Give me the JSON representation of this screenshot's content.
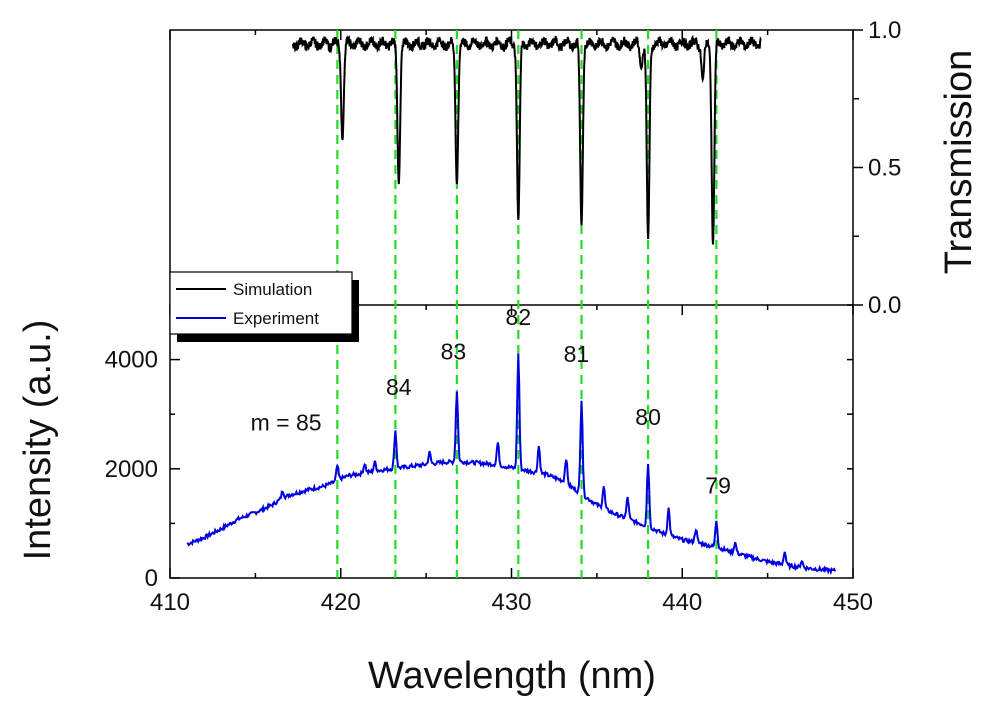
{
  "chart_data": {
    "type": "line",
    "xlabel": "Wavelength (nm)",
    "xlim": [
      410,
      450
    ],
    "x_ticks": [
      "410",
      "420",
      "430",
      "440",
      "450"
    ],
    "bottom_panel": {
      "ylabel": "Intensity (a.u.)",
      "ylim": [
        0,
        5000
      ],
      "y_ticks": [
        "0",
        "2000",
        "4000"
      ]
    },
    "top_panel": {
      "ylabel": "Transmission",
      "ylim": [
        0,
        1.0
      ],
      "y_ticks": [
        "0.0",
        "0.5",
        "1.0"
      ]
    },
    "legend": {
      "position": "center-left",
      "entries": [
        {
          "name": "Simulation",
          "color": "#000000"
        },
        {
          "name": "Experiment",
          "color": "#0000e0"
        }
      ]
    },
    "guide_lines": {
      "color": "#22dd22",
      "x": [
        419.8,
        423.2,
        426.8,
        430.4,
        434.1,
        438.0,
        442.0
      ]
    },
    "annotations": [
      {
        "text": "m = 85",
        "x": 416.8,
        "y": 2700
      },
      {
        "text": "84",
        "x": 423.4,
        "y": 3350
      },
      {
        "text": "83",
        "x": 426.6,
        "y": 4000
      },
      {
        "text": "82",
        "x": 430.4,
        "y": 4630
      },
      {
        "text": "81",
        "x": 433.8,
        "y": 3960
      },
      {
        "text": "80",
        "x": 438.0,
        "y": 2800
      },
      {
        "text": "79",
        "x": 442.1,
        "y": 1550
      }
    ],
    "series": [
      {
        "name": "Simulation",
        "panel": "top",
        "color": "#000000",
        "baseline": 0.95,
        "x_range": [
          417.2,
          444.6
        ],
        "dips": [
          {
            "x": 420.1,
            "min": 0.6
          },
          {
            "x": 423.4,
            "min": 0.44
          },
          {
            "x": 426.8,
            "min": 0.44
          },
          {
            "x": 430.4,
            "min": 0.31
          },
          {
            "x": 434.1,
            "min": 0.29
          },
          {
            "x": 437.6,
            "min": 0.86
          },
          {
            "x": 438.0,
            "min": 0.24
          },
          {
            "x": 441.2,
            "min": 0.82
          },
          {
            "x": 441.8,
            "min": 0.22
          }
        ]
      },
      {
        "name": "Experiment",
        "panel": "bottom",
        "color": "#0000e0",
        "x": [
          411.0,
          412.0,
          413.0,
          414.0,
          415.0,
          416.0,
          416.5,
          417.0,
          418.0,
          419.0,
          419.5,
          420.0,
          420.5,
          421.0,
          422.0,
          423.0,
          424.0,
          425.0,
          426.0,
          427.0,
          428.0,
          429.0,
          430.0,
          431.0,
          432.0,
          433.0,
          434.0,
          435.0,
          436.0,
          437.0,
          438.0,
          439.0,
          440.0,
          441.0,
          442.0,
          443.0,
          444.0,
          445.0,
          446.0,
          447.0,
          448.0,
          449.0
        ],
        "values": [
          620,
          740,
          900,
          1080,
          1200,
          1340,
          1450,
          1520,
          1610,
          1680,
          1740,
          1820,
          1880,
          1900,
          1960,
          2000,
          2040,
          2080,
          2120,
          2130,
          2110,
          2080,
          2020,
          1960,
          1900,
          1780,
          1560,
          1340,
          1180,
          1060,
          940,
          800,
          700,
          640,
          560,
          470,
          380,
          300,
          240,
          190,
          160,
          130
        ],
        "peaks": [
          {
            "x": 416.6,
            "value": 1600
          },
          {
            "x": 419.8,
            "value": 2050
          },
          {
            "x": 421.4,
            "value": 2100
          },
          {
            "x": 422.0,
            "value": 2120
          },
          {
            "x": 423.2,
            "value": 2700
          },
          {
            "x": 425.2,
            "value": 2300
          },
          {
            "x": 426.8,
            "value": 3430
          },
          {
            "x": 429.2,
            "value": 2480
          },
          {
            "x": 430.4,
            "value": 4100
          },
          {
            "x": 431.6,
            "value": 2420
          },
          {
            "x": 433.2,
            "value": 2200
          },
          {
            "x": 434.1,
            "value": 3280
          },
          {
            "x": 435.4,
            "value": 1680
          },
          {
            "x": 436.8,
            "value": 1480
          },
          {
            "x": 438.0,
            "value": 2100
          },
          {
            "x": 439.2,
            "value": 1280
          },
          {
            "x": 440.8,
            "value": 900
          },
          {
            "x": 442.0,
            "value": 1060
          },
          {
            "x": 443.1,
            "value": 650
          },
          {
            "x": 446.0,
            "value": 480
          },
          {
            "x": 447.0,
            "value": 320
          }
        ]
      }
    ]
  }
}
